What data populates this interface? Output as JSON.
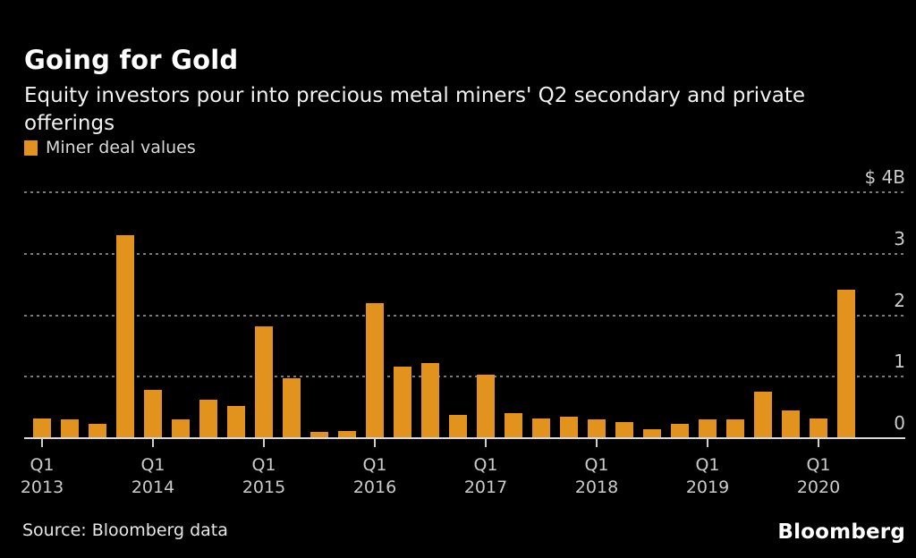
{
  "header": {
    "title": "Going for Gold",
    "subtitle": "Equity investors pour into precious metal miners' Q2 secondary and private offerings"
  },
  "legend": {
    "label": "Miner deal values",
    "swatch_color": "#e2931e"
  },
  "chart_data": {
    "type": "bar",
    "title": "Going for Gold",
    "subtitle": "Equity investors pour into precious metal miners' Q2 secondary and private offerings",
    "series_name": "Miner deal values",
    "unit": "billions USD",
    "categories": [
      "Q1 2013",
      "Q2 2013",
      "Q3 2013",
      "Q4 2013",
      "Q1 2014",
      "Q2 2014",
      "Q3 2014",
      "Q4 2014",
      "Q1 2015",
      "Q2 2015",
      "Q3 2015",
      "Q4 2015",
      "Q1 2016",
      "Q2 2016",
      "Q3 2016",
      "Q4 2016",
      "Q1 2017",
      "Q2 2017",
      "Q3 2017",
      "Q4 2017",
      "Q1 2018",
      "Q2 2018",
      "Q3 2018",
      "Q4 2018",
      "Q1 2019",
      "Q2 2019",
      "Q3 2019",
      "Q4 2019",
      "Q1 2020",
      "Q2 2020"
    ],
    "values": [
      0.32,
      0.31,
      0.23,
      3.3,
      0.78,
      0.31,
      0.62,
      0.52,
      1.82,
      0.97,
      0.1,
      0.12,
      2.2,
      1.16,
      1.22,
      0.38,
      1.04,
      0.41,
      0.32,
      0.35,
      0.31,
      0.26,
      0.15,
      0.23,
      0.31,
      0.31,
      0.76,
      0.45,
      0.32,
      2.42
    ],
    "ylim": [
      0,
      4
    ],
    "y_ticks": [
      {
        "value": 4,
        "label": "$ 4B"
      },
      {
        "value": 3,
        "label": "3"
      },
      {
        "value": 2,
        "label": "2"
      },
      {
        "value": 1,
        "label": "1"
      },
      {
        "value": 0,
        "label": "0"
      }
    ],
    "x_ticks": [
      {
        "index": 0,
        "line1": "Q1",
        "line2": "2013"
      },
      {
        "index": 4,
        "line1": "Q1",
        "line2": "2014"
      },
      {
        "index": 8,
        "line1": "Q1",
        "line2": "2015"
      },
      {
        "index": 12,
        "line1": "Q1",
        "line2": "2016"
      },
      {
        "index": 16,
        "line1": "Q1",
        "line2": "2017"
      },
      {
        "index": 20,
        "line1": "Q1",
        "line2": "2018"
      },
      {
        "index": 24,
        "line1": "Q1",
        "line2": "2019"
      },
      {
        "index": 28,
        "line1": "Q1",
        "line2": "2020"
      }
    ],
    "grid": "horizontal dotted",
    "legend_position": "top-left",
    "bar_color": "#e2931e",
    "background_color": "#000000"
  },
  "footer": {
    "source": "Source:  Bloomberg data",
    "logo": "Bloomberg"
  }
}
